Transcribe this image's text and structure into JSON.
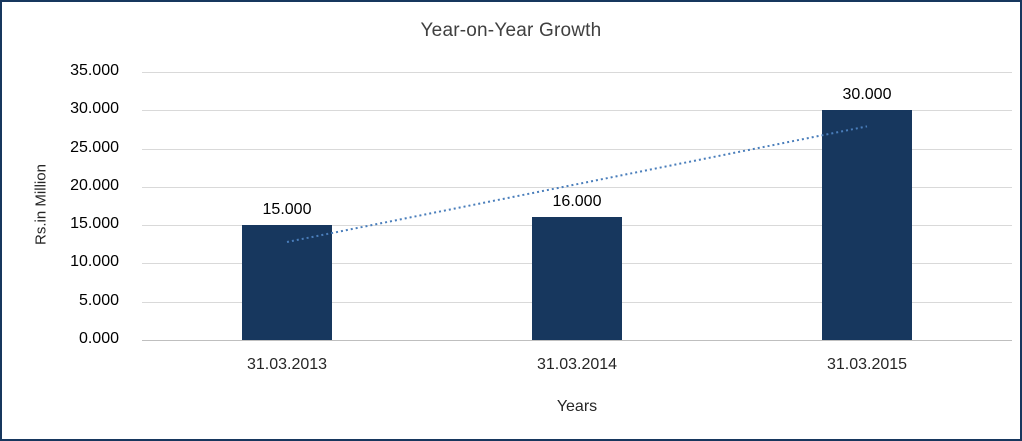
{
  "chart_data": {
    "type": "bar",
    "title": "Year-on-Year Growth",
    "xlabel": "Years",
    "ylabel": "Rs.in Million",
    "categories": [
      "31.03.2013",
      "31.03.2014",
      "31.03.2015"
    ],
    "values": [
      15,
      16,
      30
    ],
    "value_labels": [
      "15.000",
      "16.000",
      "30.000"
    ],
    "ylim": [
      0,
      35
    ],
    "ytick_step": 5,
    "ytick_labels": [
      "0.000",
      "5.000",
      "10.000",
      "15.000",
      "20.000",
      "25.000",
      "30.000",
      "35.000"
    ],
    "grid": true,
    "legend": "none",
    "trendline": {
      "type": "linear",
      "style": "dotted",
      "start_value": 12.8,
      "end_value": 27.9
    }
  },
  "colors": {
    "bar": "#17375E",
    "frame": "#17375E",
    "trendline": "#4A7EBB",
    "gridline": "#D9D9D9",
    "axis_line": "#BFBFBF",
    "title_text": "#404040"
  }
}
